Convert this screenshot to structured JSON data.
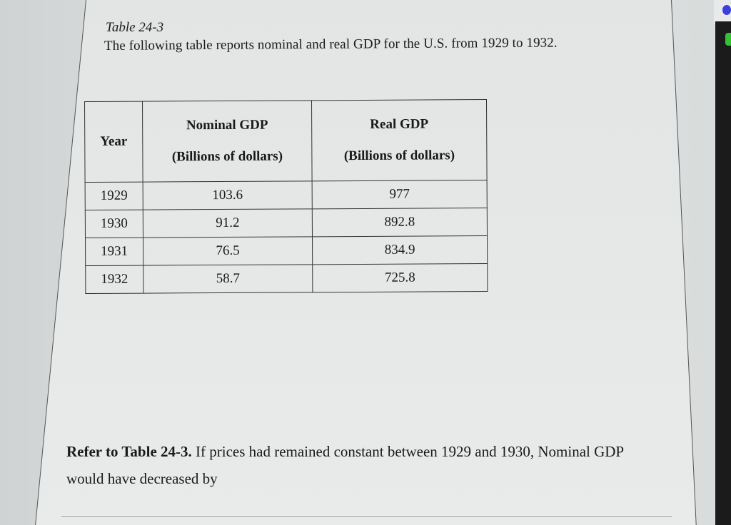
{
  "document": {
    "table_title": "Table 24-3",
    "intro": "The following table reports nominal and real GDP for the U.S. from 1929 to 1932.",
    "table": {
      "headers": {
        "year": "Year",
        "nominal_line1": "Nominal GDP",
        "nominal_line2": "(Billions of dollars)",
        "real_line1": "Real GDP",
        "real_line2": "(Billions of dollars)"
      },
      "rows": [
        {
          "year": "1929",
          "nominal": "103.6",
          "real": "977"
        },
        {
          "year": "1930",
          "nominal": "91.2",
          "real": "892.8"
        },
        {
          "year": "1931",
          "nominal": "76.5",
          "real": "834.9"
        },
        {
          "year": "1932",
          "nominal": "58.7",
          "real": "725.8"
        }
      ]
    },
    "question": {
      "lead_bold": "Refer to Table 24-3.",
      "text": " If prices had remained constant between 1929 and 1930, Nominal GDP would have decreased by"
    }
  },
  "colors": {
    "page_background": "#e6e8e8",
    "text": "#1a1a1a",
    "table_border": "#333333",
    "device_dot_blue": "#3d3de0",
    "device_dot_green": "#34c234"
  }
}
